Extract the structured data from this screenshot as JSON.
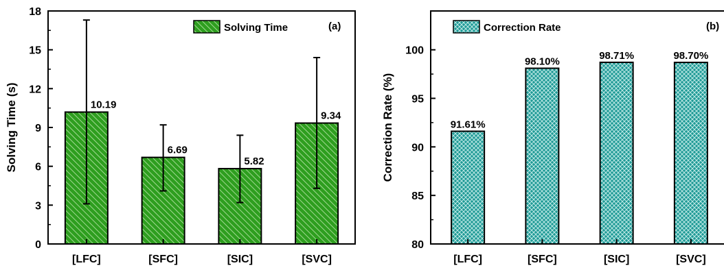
{
  "colors": {
    "green": "#2e9e1f",
    "teal": "#1f9a96"
  },
  "chart_data": [
    {
      "type": "bar",
      "panel_tag": "(a)",
      "categories": [
        "[LFC]",
        "[SFC]",
        "[SIC]",
        "[SVC]"
      ],
      "series": [
        {
          "name": "Solving Time",
          "values": [
            10.19,
            6.69,
            5.82,
            9.34
          ],
          "value_labels": [
            "10.19",
            "6.69",
            "5.82",
            "9.34"
          ],
          "error_low": [
            3.1,
            4.1,
            3.2,
            4.3
          ],
          "error_high": [
            17.3,
            9.2,
            8.4,
            14.4
          ],
          "pattern": "diagonal-hatch",
          "color": "#2e9e1f"
        }
      ],
      "ylabel": "Solving Time (s)",
      "ylim": [
        0,
        18
      ],
      "yticks": [
        0,
        3,
        6,
        9,
        12,
        15,
        18
      ],
      "legend_position": "top-right",
      "grid": false
    },
    {
      "type": "bar",
      "panel_tag": "(b)",
      "categories": [
        "[LFC]",
        "[SFC]",
        "[SIC]",
        "[SVC]"
      ],
      "series": [
        {
          "name": "Correction Rate",
          "values": [
            91.61,
            98.1,
            98.71,
            98.7
          ],
          "value_labels": [
            "91.61%",
            "98.10%",
            "98.71%",
            "98.70%"
          ],
          "pattern": "crosshatch",
          "color": "#1f9a96"
        }
      ],
      "ylabel": "Correction Rate (%)",
      "ylim": [
        80,
        104
      ],
      "yticks": [
        80,
        85,
        90,
        95,
        100
      ],
      "legend_position": "top-left",
      "grid": false
    }
  ]
}
